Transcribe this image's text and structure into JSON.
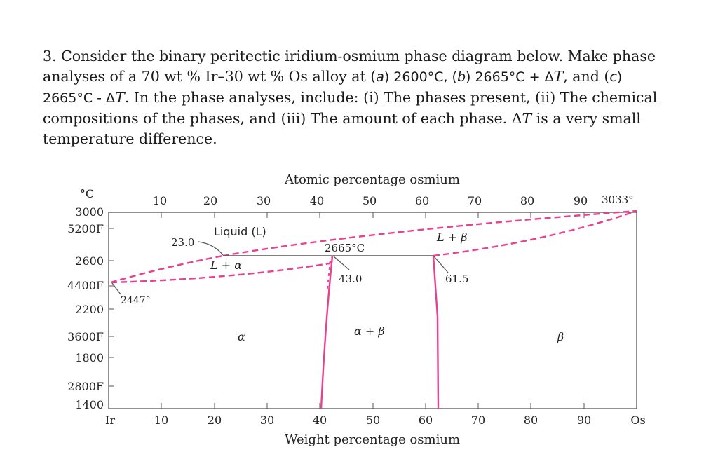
{
  "question": {
    "line1": "3. Consider the binary peritectic iridium-osmium phase diagram below. Make phase",
    "line2_a": "analyses of a 70 wt % Ir–30 wt % Os alloy at (",
    "line2_a_label": "a",
    "line2_b": ") 2600°C, (",
    "line2_b_label": "b",
    "line2_c": ") 2665°C + Δ",
    "line2_T": "T",
    "line2_d": ", and (",
    "line2_c_label": "c",
    "line2_e": ")",
    "line3_a": "2665°C - Δ",
    "line3_T": "T",
    "line3_b": ". In the phase analyses, include: (i) The phases present, (ii) The chemical",
    "line4_a": "compositions of the phases, and (iii) The amount of each phase. Δ",
    "line4_T": "T",
    "line4_b": "is a very small",
    "line5": "temperature difference."
  },
  "diagram": {
    "top_axis_title": "Atomic percentage osmium",
    "bottom_axis_title": "Weight percentage osmium",
    "celsius_unit": "°C",
    "top_ticks": [
      "10",
      "20",
      "30",
      "40",
      "50",
      "60",
      "70",
      "80",
      "90"
    ],
    "bottom_ticks": [
      "10",
      "20",
      "30",
      "40",
      "50",
      "60",
      "70",
      "80",
      "90"
    ],
    "left_end": "Ir",
    "right_end": "Os",
    "celsius_ticks": [
      "3000",
      "2600",
      "2200",
      "1800",
      "1400"
    ],
    "fahrenheit_ticks": [
      "5200F",
      "4400F",
      "3600F",
      "2800F"
    ],
    "labels": {
      "liquid": "Liquid (L)",
      "l_alpha": "L + α",
      "l_beta": "L + β",
      "alpha": "α",
      "alpha_beta": "α + β",
      "beta": "β",
      "os_melting": "3033°",
      "ir_melting": "2447°",
      "peritectic_temp": "2665°C",
      "comp_23": "23.0",
      "comp_43": "43.0",
      "comp_61": "61.5"
    },
    "colors": {
      "boundary": "#e8418f",
      "axis": "#555555"
    }
  }
}
